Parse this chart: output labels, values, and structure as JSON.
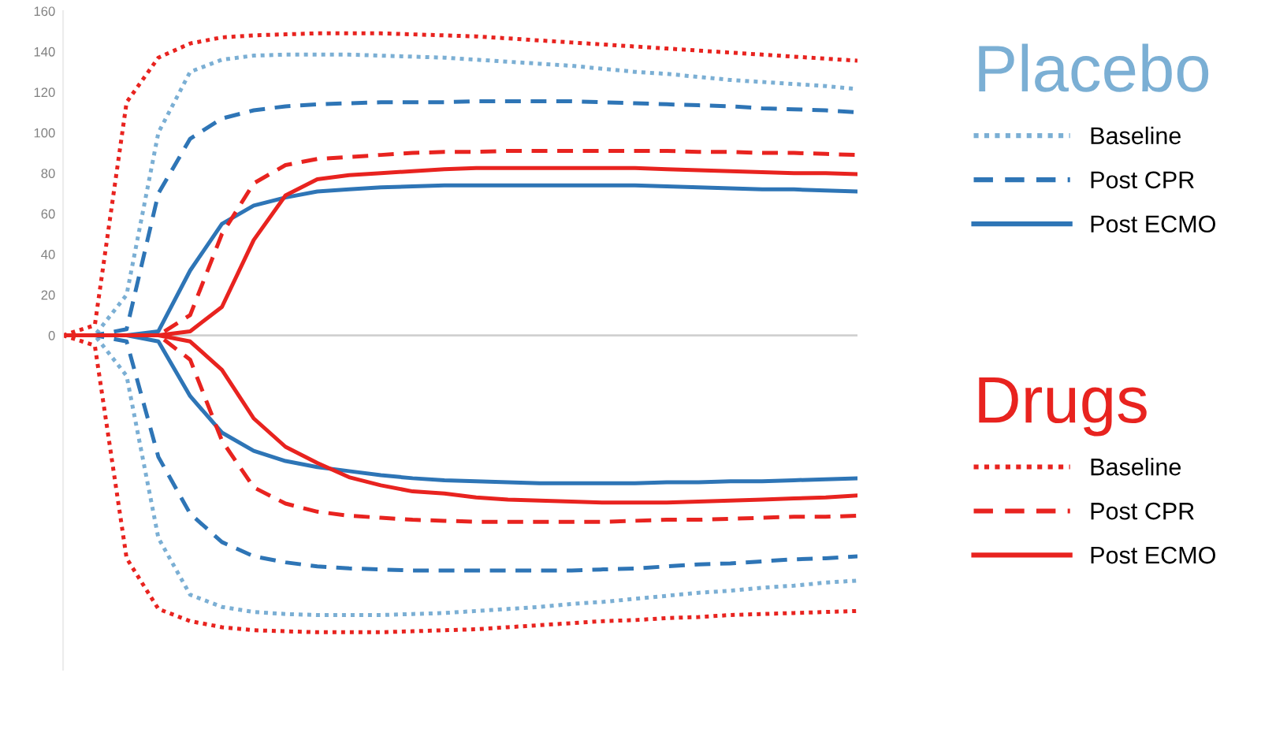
{
  "chart_data": {
    "type": "line",
    "categories": [
      null,
      null,
      null,
      null,
      null,
      null,
      null,
      null,
      null,
      null,
      null,
      null,
      null,
      null,
      null,
      null,
      null,
      null,
      null,
      null,
      null,
      null,
      null,
      null,
      null,
      null
    ],
    "ylim": [
      -165,
      160
    ],
    "yticks": [
      0,
      20,
      40,
      60,
      80,
      100,
      120,
      140,
      160
    ],
    "grid": false,
    "ref_lines": [
      {
        "axis": "y",
        "value": 0,
        "color": "#d0d0d0"
      }
    ],
    "legend": "right",
    "marker": "none",
    "annotations": [
      "Placebo",
      "Drugs"
    ],
    "series": [
      {
        "name": "Baseline",
        "color": "#7bafd4",
        "line_style": "dotted",
        "values": [
          0,
          0,
          20,
          100,
          130,
          136,
          138,
          138.5,
          138.5,
          138.5,
          138,
          137.5,
          137,
          136,
          135,
          134,
          133,
          131.5,
          130,
          129,
          127.5,
          126,
          125,
          124,
          123,
          121.5
        ]
      },
      {
        "name": "Post CPR",
        "color": "#2e75b6",
        "line_style": "dashed",
        "values": [
          0,
          0,
          3,
          70,
          97,
          107,
          111,
          113,
          114,
          114.5,
          115,
          115,
          115,
          115.5,
          115.5,
          115.5,
          115.5,
          115,
          114.5,
          114,
          113.5,
          113,
          112,
          111.5,
          111,
          110
        ]
      },
      {
        "name": "Post ECMO",
        "color": "#2e75b6",
        "line_style": "solid",
        "values": [
          0,
          0,
          0,
          2,
          32,
          55,
          64,
          68,
          71,
          72,
          73,
          73.5,
          74,
          74,
          74,
          74,
          74,
          74,
          74,
          73.5,
          73,
          72.5,
          72,
          72,
          71.5,
          71
        ]
      },
      {
        "name": "Baseline",
        "color": "#e8231f",
        "line_style": "dotted",
        "values": [
          0,
          5,
          115,
          137,
          144,
          147,
          148,
          148.5,
          149,
          149,
          149,
          148.5,
          148,
          147.5,
          146.5,
          145.5,
          144.5,
          143.5,
          142.5,
          141.5,
          140.5,
          139.5,
          138.5,
          137.5,
          136.5,
          135.5
        ]
      },
      {
        "name": "Post CPR",
        "color": "#e8231f",
        "line_style": "dashed",
        "values": [
          0,
          0,
          0,
          0,
          10,
          50,
          75,
          84,
          87,
          88,
          89,
          90,
          90.5,
          90.5,
          91,
          91,
          91,
          91,
          91,
          91,
          90.5,
          90.5,
          90,
          90,
          89.5,
          89
        ]
      },
      {
        "name": "Post ECMO",
        "color": "#e8231f",
        "line_style": "solid",
        "values": [
          0,
          0,
          0,
          0,
          2,
          14,
          47,
          69,
          77,
          79,
          80,
          81,
          82,
          82.5,
          82.5,
          82.5,
          82.5,
          82.5,
          82.5,
          82,
          81.5,
          81,
          80.5,
          80,
          80,
          79.5
        ]
      },
      {
        "color": "#7bafd4",
        "line_style": "dotted",
        "values": [
          0,
          0,
          -20,
          -100,
          -128,
          -134,
          -136.5,
          -137.5,
          -138,
          -138,
          -138,
          -137.5,
          -137,
          -136,
          -135,
          -134,
          -132.5,
          -131.5,
          -130,
          -128.5,
          -127,
          -126,
          -124.5,
          -123.5,
          -122,
          -121
        ]
      },
      {
        "color": "#2e75b6",
        "line_style": "dashed",
        "values": [
          0,
          0,
          -3,
          -60,
          -88,
          -102,
          -109,
          -112,
          -114,
          -115,
          -115.5,
          -116,
          -116,
          -116,
          -116,
          -116,
          -116,
          -115.5,
          -115,
          -114,
          -113,
          -112.5,
          -111.5,
          -110.5,
          -110,
          -109
        ]
      },
      {
        "color": "#2e75b6",
        "line_style": "solid",
        "values": [
          0,
          0,
          0,
          -3,
          -30,
          -48,
          -57,
          -62,
          -65,
          -67,
          -69,
          -70.5,
          -71.5,
          -72,
          -72.5,
          -73,
          -73,
          -73,
          -73,
          -72.5,
          -72.5,
          -72,
          -72,
          -71.5,
          -71,
          -70.5
        ]
      },
      {
        "color": "#e8231f",
        "line_style": "dotted",
        "values": [
          0,
          -5,
          -110,
          -135,
          -141,
          -144,
          -145.5,
          -146,
          -146.5,
          -146.5,
          -146.5,
          -146,
          -145.5,
          -145,
          -144,
          -143,
          -142,
          -141,
          -140.5,
          -139.5,
          -139,
          -138,
          -137.5,
          -137,
          -136.5,
          -136
        ]
      },
      {
        "color": "#e8231f",
        "line_style": "dashed",
        "values": [
          0,
          0,
          0,
          0,
          -12,
          -52,
          -75,
          -83,
          -87,
          -89,
          -90,
          -91,
          -91.5,
          -92,
          -92,
          -92,
          -92,
          -92,
          -91.5,
          -91,
          -91,
          -90.5,
          -90,
          -89.5,
          -89.5,
          -89
        ]
      },
      {
        "color": "#e8231f",
        "line_style": "solid",
        "values": [
          0,
          0,
          0,
          0,
          -3,
          -17,
          -41,
          -55,
          -63,
          -70,
          -74,
          -77,
          -78,
          -80,
          -81,
          -81.5,
          -82,
          -82.5,
          -82.5,
          -82.5,
          -82,
          -81.5,
          -81,
          -80.5,
          -80,
          -79
        ]
      }
    ]
  }
}
